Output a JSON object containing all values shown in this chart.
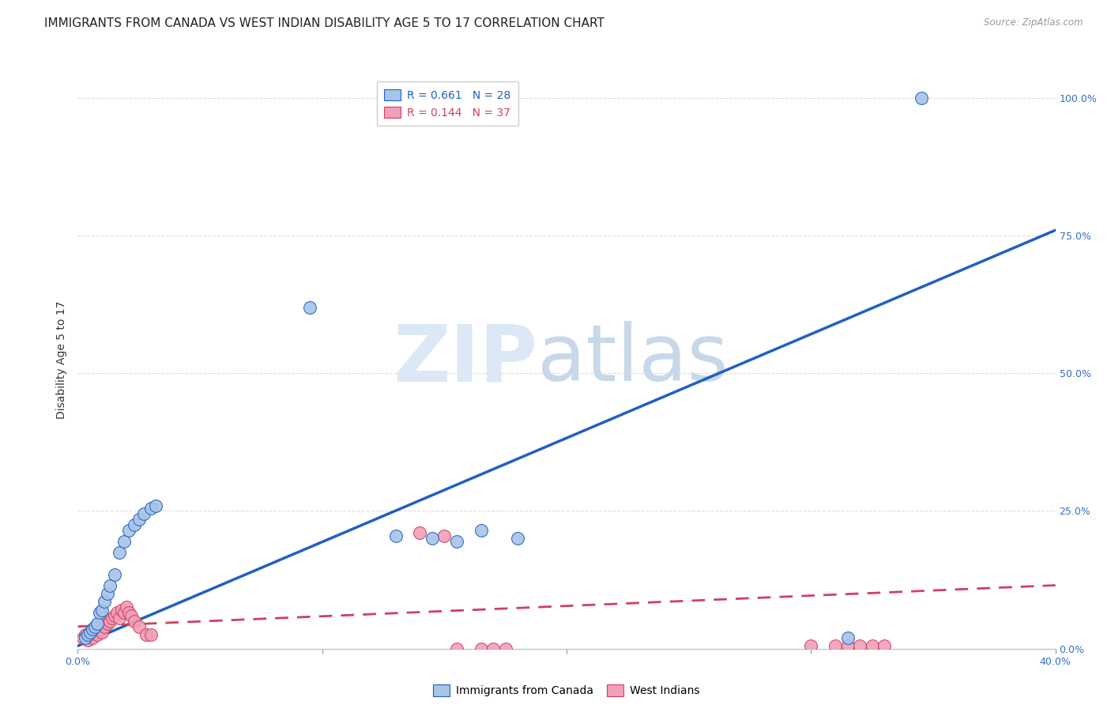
{
  "title": "IMMIGRANTS FROM CANADA VS WEST INDIAN DISABILITY AGE 5 TO 17 CORRELATION CHART",
  "source": "Source: ZipAtlas.com",
  "ylabel": "Disability Age 5 to 17",
  "xlim": [
    0.0,
    0.4
  ],
  "ylim": [
    0.0,
    1.05
  ],
  "xticks": [
    0.0,
    0.1,
    0.2,
    0.3,
    0.4
  ],
  "ytick_labels_right": [
    "0.0%",
    "25.0%",
    "50.0%",
    "75.0%",
    "100.0%"
  ],
  "yticks_right": [
    0.0,
    0.25,
    0.5,
    0.75,
    1.0
  ],
  "canada_R": 0.661,
  "canada_N": 28,
  "westindian_R": 0.144,
  "westindian_N": 37,
  "canada_color": "#a8c4e8",
  "canada_line_color": "#2060c0",
  "westindian_color": "#f0a0b8",
  "westindian_line_color": "#d04060",
  "canada_x": [
    0.003,
    0.004,
    0.005,
    0.006,
    0.007,
    0.008,
    0.009,
    0.01,
    0.011,
    0.012,
    0.013,
    0.015,
    0.017,
    0.019,
    0.021,
    0.023,
    0.025,
    0.027,
    0.03,
    0.032,
    0.095,
    0.13,
    0.145,
    0.155,
    0.165,
    0.18,
    0.315,
    0.345
  ],
  "canada_y": [
    0.02,
    0.025,
    0.03,
    0.035,
    0.04,
    0.045,
    0.065,
    0.07,
    0.085,
    0.1,
    0.115,
    0.135,
    0.175,
    0.195,
    0.215,
    0.225,
    0.235,
    0.245,
    0.255,
    0.26,
    0.62,
    0.205,
    0.2,
    0.195,
    0.215,
    0.2,
    0.02,
    1.0
  ],
  "westindian_x": [
    0.002,
    0.003,
    0.004,
    0.005,
    0.006,
    0.007,
    0.008,
    0.009,
    0.01,
    0.011,
    0.012,
    0.013,
    0.014,
    0.015,
    0.016,
    0.017,
    0.018,
    0.019,
    0.02,
    0.021,
    0.022,
    0.023,
    0.025,
    0.028,
    0.03,
    0.14,
    0.15,
    0.155,
    0.165,
    0.17,
    0.175,
    0.3,
    0.31,
    0.315,
    0.32,
    0.325,
    0.33
  ],
  "westindian_y": [
    0.02,
    0.025,
    0.015,
    0.025,
    0.02,
    0.03,
    0.025,
    0.035,
    0.03,
    0.04,
    0.045,
    0.05,
    0.055,
    0.06,
    0.065,
    0.055,
    0.07,
    0.065,
    0.075,
    0.065,
    0.06,
    0.05,
    0.04,
    0.025,
    0.025,
    0.21,
    0.205,
    0.0,
    0.0,
    0.0,
    0.0,
    0.005,
    0.005,
    0.005,
    0.005,
    0.005,
    0.005
  ],
  "canada_line_x": [
    0.0,
    0.4
  ],
  "canada_line_y": [
    0.005,
    0.76
  ],
  "westindian_line_x": [
    0.0,
    0.4
  ],
  "westindian_line_y": [
    0.04,
    0.115
  ],
  "background_color": "#ffffff",
  "grid_color": "#dddddd",
  "watermark_zip": "ZIP",
  "watermark_atlas": "atlas",
  "title_fontsize": 11,
  "axis_label_fontsize": 10,
  "tick_fontsize": 9,
  "legend_fontsize": 10
}
